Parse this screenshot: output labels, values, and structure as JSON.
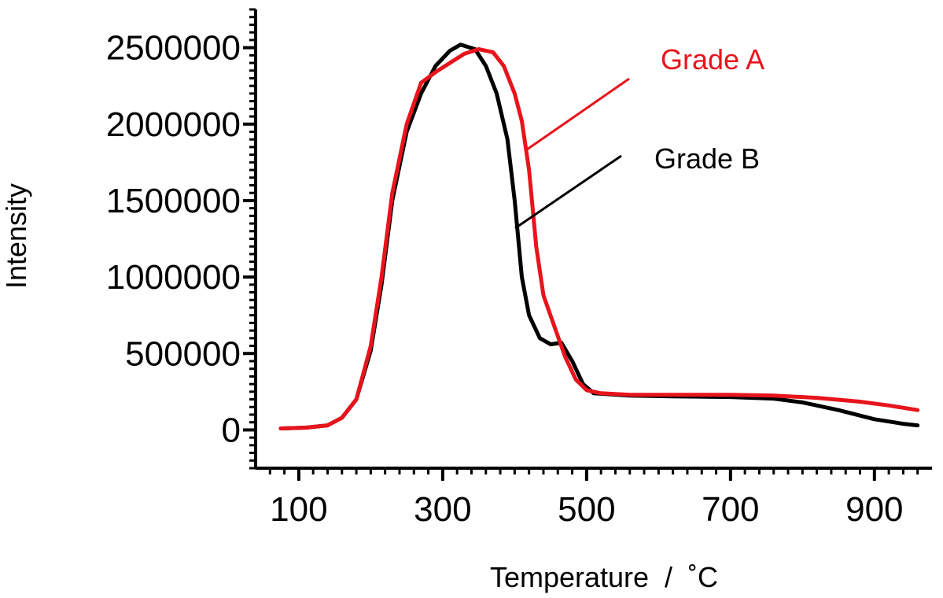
{
  "chart_data": {
    "type": "line",
    "title": "",
    "xlabel": "Temperature  /  ˚C",
    "ylabel": "Intensity",
    "xlim": [
      40,
      980
    ],
    "ylim": [
      -250000,
      2750000
    ],
    "x_ticks": [
      100,
      300,
      500,
      700,
      900
    ],
    "x_tick_labels": [
      "100",
      "300",
      "500",
      "700",
      "900"
    ],
    "y_ticks": [
      0,
      500000,
      1000000,
      1500000,
      2000000,
      2500000
    ],
    "y_tick_labels": [
      "0",
      "500000",
      "1000000",
      "1500000",
      "2000000",
      "2500000"
    ],
    "grid": false,
    "legend": "annotated leader lines, top-right",
    "series": [
      {
        "name": "Grade A",
        "color": "#e8141c",
        "points": [
          [
            75,
            10000
          ],
          [
            110,
            15000
          ],
          [
            140,
            30000
          ],
          [
            160,
            80000
          ],
          [
            180,
            200000
          ],
          [
            200,
            550000
          ],
          [
            215,
            1000000
          ],
          [
            230,
            1550000
          ],
          [
            250,
            2000000
          ],
          [
            270,
            2270000
          ],
          [
            290,
            2340000
          ],
          [
            310,
            2400000
          ],
          [
            330,
            2460000
          ],
          [
            350,
            2490000
          ],
          [
            370,
            2470000
          ],
          [
            385,
            2380000
          ],
          [
            400,
            2200000
          ],
          [
            410,
            2020000
          ],
          [
            420,
            1700000
          ],
          [
            430,
            1200000
          ],
          [
            440,
            880000
          ],
          [
            455,
            680000
          ],
          [
            470,
            480000
          ],
          [
            485,
            330000
          ],
          [
            500,
            260000
          ],
          [
            520,
            240000
          ],
          [
            560,
            230000
          ],
          [
            620,
            230000
          ],
          [
            700,
            230000
          ],
          [
            760,
            225000
          ],
          [
            820,
            210000
          ],
          [
            880,
            185000
          ],
          [
            920,
            160000
          ],
          [
            960,
            130000
          ]
        ]
      },
      {
        "name": "Grade B",
        "color": "#000000",
        "points": [
          [
            75,
            10000
          ],
          [
            110,
            15000
          ],
          [
            140,
            30000
          ],
          [
            160,
            80000
          ],
          [
            180,
            200000
          ],
          [
            200,
            520000
          ],
          [
            215,
            950000
          ],
          [
            230,
            1500000
          ],
          [
            250,
            1950000
          ],
          [
            270,
            2200000
          ],
          [
            290,
            2380000
          ],
          [
            310,
            2480000
          ],
          [
            325,
            2520000
          ],
          [
            345,
            2490000
          ],
          [
            360,
            2380000
          ],
          [
            375,
            2200000
          ],
          [
            390,
            1900000
          ],
          [
            400,
            1500000
          ],
          [
            410,
            1000000
          ],
          [
            420,
            750000
          ],
          [
            435,
            600000
          ],
          [
            450,
            560000
          ],
          [
            465,
            570000
          ],
          [
            480,
            450000
          ],
          [
            495,
            300000
          ],
          [
            510,
            240000
          ],
          [
            560,
            225000
          ],
          [
            620,
            220000
          ],
          [
            700,
            215000
          ],
          [
            760,
            205000
          ],
          [
            800,
            180000
          ],
          [
            850,
            130000
          ],
          [
            900,
            70000
          ],
          [
            940,
            40000
          ],
          [
            960,
            30000
          ]
        ]
      }
    ]
  }
}
